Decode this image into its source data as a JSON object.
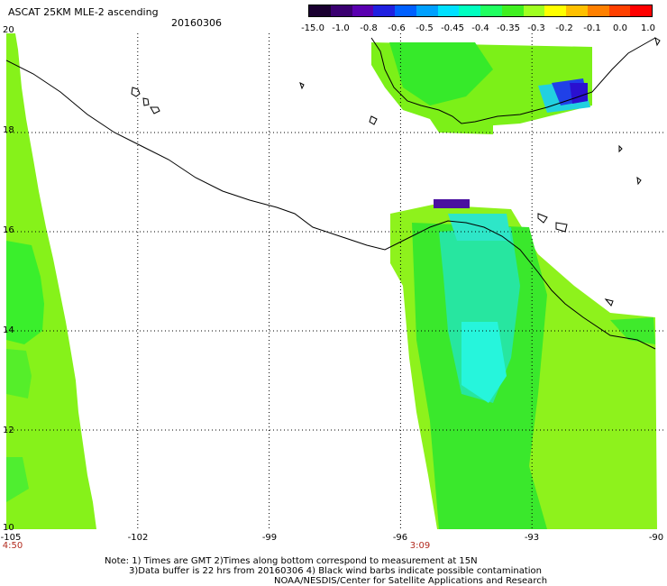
{
  "header": {
    "title": "ASCAT 25KM MLE-2 ascending",
    "date": "20160306"
  },
  "colorbar": {
    "labels": [
      "-15.0",
      "-1.0",
      "-0.8",
      "-0.6",
      "-0.5",
      "-0.45",
      "-0.4",
      "-0.35",
      "-0.3",
      "-0.2",
      "-0.1",
      "0.0",
      "1.0"
    ],
    "colors": [
      "#1a0030",
      "#3a0070",
      "#5a00b0",
      "#2020e0",
      "#0060ff",
      "#00a0ff",
      "#00e0ff",
      "#00ffc0",
      "#20ff60",
      "#40f020",
      "#a0ff20",
      "#ffff00",
      "#ffc000",
      "#ff8000",
      "#ff4000",
      "#ff0000"
    ]
  },
  "axes": {
    "lat_labels": [
      "20",
      "18",
      "16",
      "14",
      "12",
      "10"
    ],
    "lon_labels": [
      "-105",
      "-102",
      "-99",
      "-96",
      "-93",
      "-90"
    ]
  },
  "times": [
    "4:50",
    "3:09"
  ],
  "notes": [
    "Note: 1) Times are GMT 2)Times along bottom correspond to measurement at 15N",
    "3)Data buffer is 22 hrs from 20160306 4) Black wind barbs indicate possible contamination",
    "NOAA/NESDIS/Center for Satellite Applications and Research"
  ]
}
